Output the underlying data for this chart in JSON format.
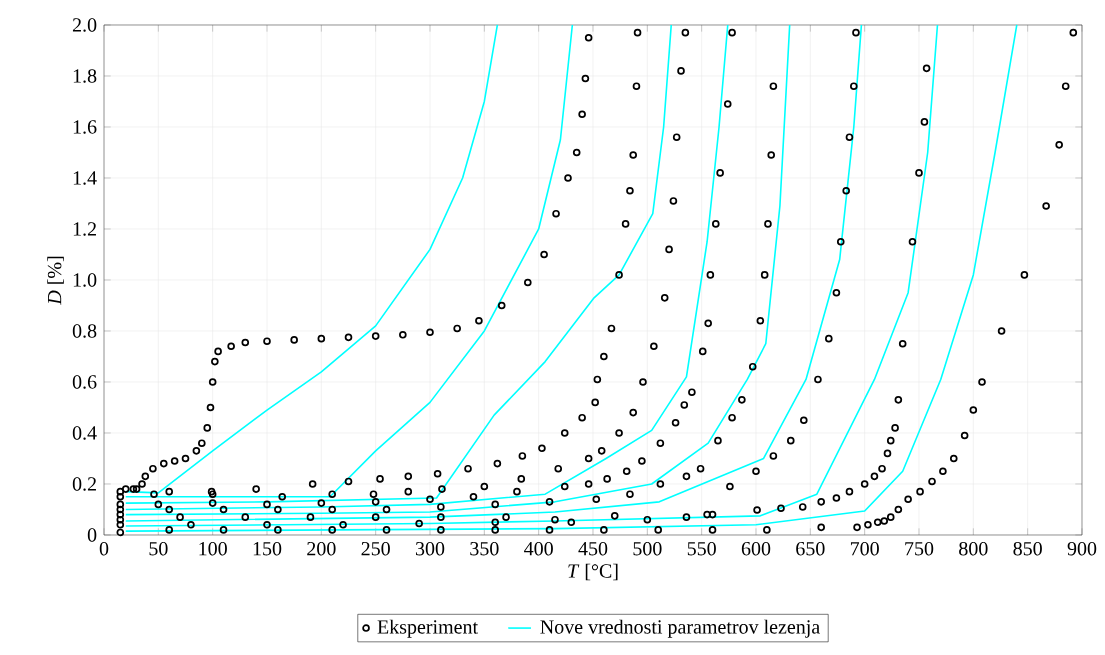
{
  "chart_data": {
    "type": "scatter",
    "xlabel": "*T* [°C]",
    "ylabel": "*D* [%]",
    "xlim": [
      0,
      900
    ],
    "ylim": [
      0,
      2
    ],
    "xticks": [
      0,
      50,
      100,
      150,
      200,
      250,
      300,
      350,
      400,
      450,
      500,
      550,
      600,
      650,
      700,
      750,
      800,
      850,
      900
    ],
    "yticks": [
      0,
      0.2,
      0.4,
      0.6,
      0.8,
      {
        "value": 1,
        "label": "1.0"
      },
      1.2,
      1.4,
      1.6,
      1.8,
      {
        "value": 2,
        "label": "2.0"
      }
    ],
    "grid": true,
    "legend": "bottom",
    "marker": "circle",
    "series": [
      {
        "name": "Eksperiment",
        "color": "#000000",
        "x": [
          15,
          20,
          30,
          35,
          38,
          45,
          55,
          65,
          75,
          85,
          90,
          95,
          98,
          100,
          102,
          105,
          117,
          130,
          150,
          175,
          200,
          225,
          250,
          275,
          300,
          325,
          345,
          366,
          390,
          405,
          416,
          427,
          435,
          440,
          443,
          446
        ],
        "values": [
          0.17,
          0.18,
          0.18,
          0.2,
          0.23,
          0.26,
          0.28,
          0.29,
          0.3,
          0.33,
          0.36,
          0.42,
          0.5,
          0.6,
          0.68,
          0.72,
          0.74,
          0.755,
          0.76,
          0.765,
          0.77,
          0.775,
          0.78,
          0.785,
          0.795,
          0.81,
          0.84,
          0.9,
          0.99,
          1.1,
          1.26,
          1.4,
          1.5,
          1.65,
          1.79,
          1.95
        ]
      },
      {
        "color": "#000000",
        "x": [
          15,
          27,
          60,
          99,
          140,
          192,
          225,
          254,
          280,
          307,
          335,
          362,
          385,
          403,
          424,
          440,
          452,
          454,
          460,
          467,
          474,
          480,
          484,
          487,
          490,
          491
        ],
        "values": [
          0.15,
          0.18,
          0.17,
          0.17,
          0.18,
          0.2,
          0.21,
          0.22,
          0.23,
          0.24,
          0.26,
          0.28,
          0.31,
          0.34,
          0.4,
          0.46,
          0.52,
          0.61,
          0.7,
          0.81,
          1.02,
          1.22,
          1.35,
          1.49,
          1.76,
          1.97
        ]
      },
      {
        "color": "#000000",
        "x": [
          15,
          46,
          100,
          164,
          210,
          248,
          280,
          311,
          350,
          384,
          418,
          446,
          458,
          474,
          487,
          496,
          506,
          516,
          520,
          524,
          527,
          531,
          535
        ],
        "values": [
          0.12,
          0.16,
          0.16,
          0.15,
          0.16,
          0.16,
          0.17,
          0.18,
          0.19,
          0.22,
          0.26,
          0.3,
          0.33,
          0.4,
          0.48,
          0.6,
          0.74,
          0.93,
          1.12,
          1.31,
          1.56,
          1.82,
          1.97
        ]
      },
      {
        "color": "#000000",
        "x": [
          15,
          50,
          100,
          150,
          200,
          250,
          300,
          340,
          380,
          424,
          446,
          463,
          481,
          495,
          512,
          526,
          534,
          541,
          551,
          556,
          558,
          563,
          567,
          574,
          578
        ],
        "values": [
          0.1,
          0.12,
          0.125,
          0.12,
          0.125,
          0.13,
          0.14,
          0.15,
          0.17,
          0.19,
          0.2,
          0.22,
          0.25,
          0.29,
          0.36,
          0.44,
          0.51,
          0.56,
          0.72,
          0.83,
          1.02,
          1.22,
          1.42,
          1.69,
          1.97
        ]
      },
      {
        "color": "#000000",
        "x": [
          15,
          60,
          110,
          160,
          210,
          260,
          310,
          360,
          410,
          453,
          484,
          512,
          536,
          549,
          565,
          578,
          587,
          597,
          604,
          608,
          611,
          614,
          616
        ],
        "values": [
          0.08,
          0.1,
          0.1,
          0.1,
          0.1,
          0.1,
          0.11,
          0.12,
          0.13,
          0.14,
          0.16,
          0.2,
          0.23,
          0.26,
          0.37,
          0.46,
          0.53,
          0.66,
          0.84,
          1.02,
          1.22,
          1.49,
          1.76
        ]
      },
      {
        "color": "#000000",
        "x": [
          15,
          70,
          130,
          190,
          250,
          310,
          370,
          415,
          470,
          536,
          555,
          576,
          600,
          616,
          632,
          644,
          657,
          667,
          674,
          678,
          683,
          686,
          690,
          692
        ],
        "values": [
          0.06,
          0.07,
          0.07,
          0.07,
          0.07,
          0.07,
          0.07,
          0.06,
          0.075,
          0.07,
          0.08,
          0.19,
          0.25,
          0.31,
          0.37,
          0.45,
          0.61,
          0.77,
          0.95,
          1.15,
          1.35,
          1.56,
          1.76,
          1.97
        ]
      },
      {
        "color": "#000000",
        "x": [
          15,
          80,
          150,
          220,
          290,
          360,
          430,
          500,
          560,
          601,
          623,
          643,
          660,
          674,
          686,
          700,
          709,
          716,
          721,
          724,
          728,
          731,
          735,
          744,
          750,
          755,
          757
        ],
        "values": [
          0.04,
          0.04,
          0.04,
          0.04,
          0.045,
          0.05,
          0.05,
          0.06,
          0.08,
          0.098,
          0.105,
          0.11,
          0.13,
          0.145,
          0.17,
          0.2,
          0.23,
          0.26,
          0.32,
          0.37,
          0.42,
          0.53,
          0.75,
          1.15,
          1.42,
          1.62,
          1.83
        ]
      },
      {
        "color": "#000000",
        "x": [
          15,
          60,
          110,
          160,
          210,
          260,
          310,
          360,
          410,
          460,
          510,
          560,
          610,
          660,
          693,
          703,
          712,
          718,
          724,
          731,
          740,
          751,
          762,
          772,
          782,
          792,
          800,
          808,
          826,
          847,
          867,
          879,
          885,
          892
        ],
        "values": [
          0.01,
          0.02,
          0.02,
          0.02,
          0.02,
          0.02,
          0.02,
          0.02,
          0.02,
          0.02,
          0.02,
          0.02,
          0.02,
          0.03,
          0.03,
          0.04,
          0.05,
          0.055,
          0.07,
          0.1,
          0.14,
          0.17,
          0.21,
          0.25,
          0.3,
          0.39,
          0.49,
          0.6,
          0.8,
          1.02,
          1.29,
          1.53,
          1.76,
          1.97
        ]
      },
      {
        "name": "Nove vrednosti parametrov lezenja",
        "type": "line",
        "color": "#00ffff",
        "marker": "none",
        "x": [
          20,
          50,
          100,
          150,
          200,
          250,
          300,
          330,
          350,
          362
        ],
        "values": [
          0.17,
          0.165,
          0.33,
          0.49,
          0.64,
          0.82,
          1.12,
          1.4,
          1.7,
          2.0
        ]
      },
      {
        "type": "line",
        "color": "#00ffff",
        "marker": "none",
        "x": [
          20,
          100,
          208,
          250,
          300,
          350,
          400,
          420,
          431
        ],
        "values": [
          0.15,
          0.15,
          0.15,
          0.33,
          0.52,
          0.8,
          1.2,
          1.55,
          2.0
        ]
      },
      {
        "type": "line",
        "color": "#00ffff",
        "marker": "none",
        "x": [
          20,
          150,
          306,
          359,
          406,
          451,
          474,
          505,
          515,
          522
        ],
        "values": [
          0.125,
          0.13,
          0.145,
          0.47,
          0.68,
          0.93,
          1.02,
          1.26,
          1.6,
          2.0
        ]
      },
      {
        "type": "line",
        "color": "#00ffff",
        "marker": "none",
        "x": [
          20,
          200,
          300,
          406,
          462,
          504,
          536,
          555,
          566,
          574
        ],
        "values": [
          0.1,
          0.11,
          0.12,
          0.16,
          0.3,
          0.41,
          0.62,
          1.15,
          1.6,
          2.0
        ]
      },
      {
        "type": "line",
        "color": "#00ffff",
        "marker": "none",
        "x": [
          20,
          200,
          300,
          415,
          504,
          556,
          592,
          609,
          622,
          631
        ],
        "values": [
          0.08,
          0.085,
          0.09,
          0.13,
          0.2,
          0.36,
          0.61,
          0.75,
          1.29,
          2.0
        ]
      },
      {
        "type": "line",
        "color": "#00ffff",
        "marker": "none",
        "x": [
          20,
          300,
          415,
          511,
          607,
          646,
          677,
          690,
          697
        ],
        "values": [
          0.055,
          0.07,
          0.09,
          0.13,
          0.3,
          0.61,
          1.08,
          1.6,
          2.0
        ]
      },
      {
        "type": "line",
        "color": "#00ffff",
        "marker": "none",
        "x": [
          20,
          300,
          415,
          604,
          656,
          709,
          740,
          758,
          767
        ],
        "values": [
          0.035,
          0.045,
          0.055,
          0.075,
          0.16,
          0.61,
          0.95,
          1.5,
          2.0
        ]
      },
      {
        "type": "line",
        "color": "#00ffff",
        "marker": "none",
        "x": [
          20,
          415,
          600,
          700,
          735,
          770,
          800,
          820,
          840
        ],
        "values": [
          0.015,
          0.025,
          0.04,
          0.094,
          0.25,
          0.61,
          1.02,
          1.5,
          2.0
        ]
      }
    ]
  }
}
